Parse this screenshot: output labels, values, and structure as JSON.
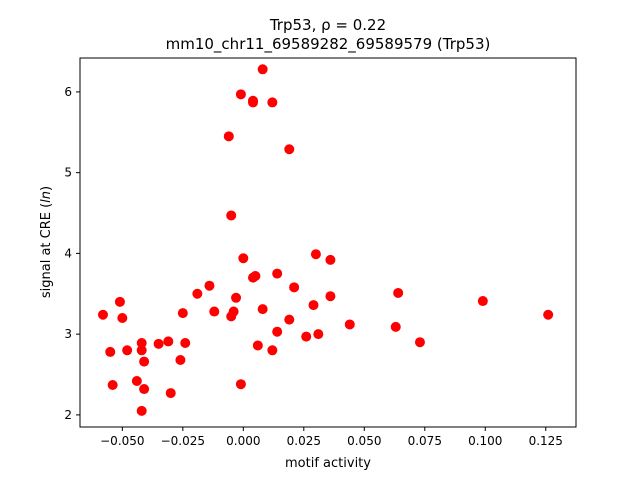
{
  "chart_data": {
    "type": "scatter",
    "title_line1": "Trp53, ρ = 0.22",
    "title_line2": "mm10_chr11_69589282_69589579 (Trp53)",
    "xlabel": "motif activity",
    "ylabel_prefix": "signal at CRE (",
    "ylabel_italic": "ln",
    "ylabel_suffix": ")",
    "xlim": [
      -0.0675,
      0.1375
    ],
    "ylim": [
      1.85,
      6.42
    ],
    "xticks": [
      -0.05,
      -0.025,
      0.0,
      0.025,
      0.05,
      0.075,
      0.1,
      0.125
    ],
    "xtick_labels": [
      "−0.050",
      "−0.025",
      "0.000",
      "0.025",
      "0.050",
      "0.075",
      "0.100",
      "0.125"
    ],
    "yticks": [
      2,
      3,
      4,
      5,
      6
    ],
    "ytick_labels": [
      "2",
      "3",
      "4",
      "5",
      "6"
    ],
    "grid": false,
    "legend": "none",
    "marker_color": "#ff0000",
    "points": [
      {
        "x": -0.058,
        "y": 3.24
      },
      {
        "x": -0.055,
        "y": 2.78
      },
      {
        "x": -0.054,
        "y": 2.37
      },
      {
        "x": -0.051,
        "y": 3.4
      },
      {
        "x": -0.05,
        "y": 3.2
      },
      {
        "x": -0.048,
        "y": 2.8
      },
      {
        "x": -0.044,
        "y": 2.42
      },
      {
        "x": -0.042,
        "y": 2.89
      },
      {
        "x": -0.042,
        "y": 2.8
      },
      {
        "x": -0.042,
        "y": 2.05
      },
      {
        "x": -0.041,
        "y": 2.66
      },
      {
        "x": -0.041,
        "y": 2.32
      },
      {
        "x": -0.035,
        "y": 2.88
      },
      {
        "x": -0.031,
        "y": 2.91
      },
      {
        "x": -0.03,
        "y": 2.27
      },
      {
        "x": -0.026,
        "y": 2.68
      },
      {
        "x": -0.025,
        "y": 3.26
      },
      {
        "x": -0.024,
        "y": 2.89
      },
      {
        "x": -0.019,
        "y": 3.5
      },
      {
        "x": -0.014,
        "y": 3.6
      },
      {
        "x": -0.012,
        "y": 3.28
      },
      {
        "x": -0.006,
        "y": 5.45
      },
      {
        "x": -0.005,
        "y": 4.47
      },
      {
        "x": -0.005,
        "y": 3.22
      },
      {
        "x": -0.004,
        "y": 3.28
      },
      {
        "x": -0.003,
        "y": 3.45
      },
      {
        "x": -0.001,
        "y": 5.97
      },
      {
        "x": -0.001,
        "y": 2.38
      },
      {
        "x": 0.0,
        "y": 3.94
      },
      {
        "x": 0.004,
        "y": 5.87
      },
      {
        "x": 0.004,
        "y": 5.89
      },
      {
        "x": 0.004,
        "y": 3.7
      },
      {
        "x": 0.005,
        "y": 3.72
      },
      {
        "x": 0.006,
        "y": 2.86
      },
      {
        "x": 0.008,
        "y": 6.28
      },
      {
        "x": 0.008,
        "y": 3.31
      },
      {
        "x": 0.012,
        "y": 5.87
      },
      {
        "x": 0.012,
        "y": 2.8
      },
      {
        "x": 0.014,
        "y": 3.75
      },
      {
        "x": 0.014,
        "y": 3.03
      },
      {
        "x": 0.019,
        "y": 5.29
      },
      {
        "x": 0.019,
        "y": 3.18
      },
      {
        "x": 0.021,
        "y": 3.58
      },
      {
        "x": 0.026,
        "y": 2.97
      },
      {
        "x": 0.029,
        "y": 3.36
      },
      {
        "x": 0.03,
        "y": 3.99
      },
      {
        "x": 0.031,
        "y": 3.0
      },
      {
        "x": 0.036,
        "y": 3.92
      },
      {
        "x": 0.036,
        "y": 3.47
      },
      {
        "x": 0.044,
        "y": 3.12
      },
      {
        "x": 0.063,
        "y": 3.09
      },
      {
        "x": 0.064,
        "y": 3.51
      },
      {
        "x": 0.073,
        "y": 2.9
      },
      {
        "x": 0.099,
        "y": 3.41
      },
      {
        "x": 0.126,
        "y": 3.24
      }
    ]
  }
}
